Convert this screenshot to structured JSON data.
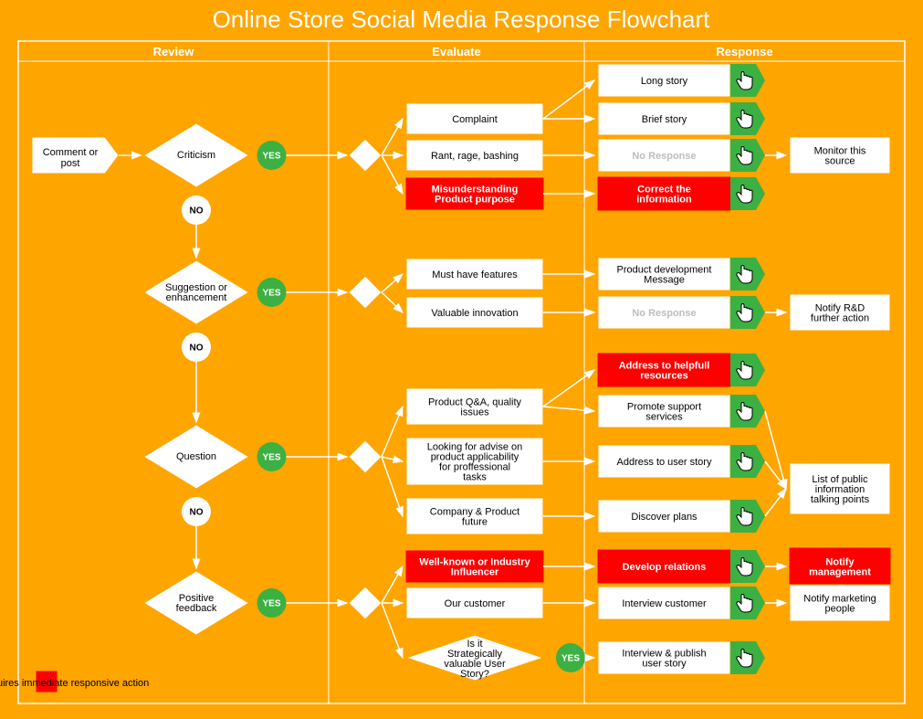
{
  "title": "Online Store Social Media Response Flowchart",
  "columns": [
    "Review",
    "Evaluate",
    "Response"
  ],
  "legend": "Requires immediate responsive action",
  "colors": {
    "bg": "#ffa500",
    "green": "#3cb043",
    "red": "#ff0000",
    "white": "#ffffff",
    "grey": "#bdbdbd"
  },
  "start": "Comment or post",
  "review_decisions": [
    {
      "label": "Criticism",
      "yes": "YES",
      "no": "NO"
    },
    {
      "label": "Suggestion or enhancement",
      "yes": "YES",
      "no": "NO"
    },
    {
      "label": "Question",
      "yes": "YES",
      "no": "NO"
    },
    {
      "label": "Positive feedback",
      "yes": "YES",
      "no": ""
    }
  ],
  "evaluate": {
    "criticism": [
      {
        "label": "Complaint",
        "red": false
      },
      {
        "label": "Rant, rage, bashing",
        "red": false
      },
      {
        "label": "Misunderstanding Product purpose",
        "red": true
      }
    ],
    "suggestion": [
      {
        "label": "Must have features",
        "red": false
      },
      {
        "label": "Valuable innovation",
        "red": false
      }
    ],
    "question": [
      {
        "label": "Product Q&A, quality issues",
        "red": false
      },
      {
        "label": "Looking for advise on product applicability for proffessional tasks",
        "red": false
      },
      {
        "label": "Company & Product future",
        "red": false
      }
    ],
    "positive": [
      {
        "label": "Well-known or Industry Influencer",
        "red": true
      },
      {
        "label": "Our customer",
        "red": false
      },
      {
        "label": "Is it Strategically valuable User Story?",
        "red": false,
        "decision": true,
        "yes": "YES"
      }
    ]
  },
  "response": [
    {
      "label": "Long story",
      "red": false,
      "hand": true
    },
    {
      "label": "Brief story",
      "red": false,
      "hand": true
    },
    {
      "label": "No Response",
      "grey": true,
      "hand": true
    },
    {
      "label": "Correct the information",
      "red": true,
      "hand": true
    },
    {
      "label": "Product development Message",
      "red": false,
      "hand": true
    },
    {
      "label": "No Response",
      "grey": true,
      "hand": true
    },
    {
      "label": "Address to helpfull resources",
      "red": true,
      "hand": true
    },
    {
      "label": "Promote support services",
      "red": false,
      "hand": true
    },
    {
      "label": "Address to user story",
      "red": false,
      "hand": true
    },
    {
      "label": "Discover plans",
      "red": false,
      "hand": true
    },
    {
      "label": "Develop relations",
      "red": true,
      "hand": true
    },
    {
      "label": "Interview customer",
      "red": false,
      "hand": true
    },
    {
      "label": "Interview & publish user story",
      "red": false,
      "hand": true
    }
  ],
  "far": [
    {
      "label": "Monitor this source",
      "red": false
    },
    {
      "label": "Notify R&D further action",
      "red": false
    },
    {
      "label": "List of public information talking points",
      "red": false
    },
    {
      "label": "Notify management",
      "red": true
    },
    {
      "label": "Notify marketing people",
      "red": false
    }
  ]
}
